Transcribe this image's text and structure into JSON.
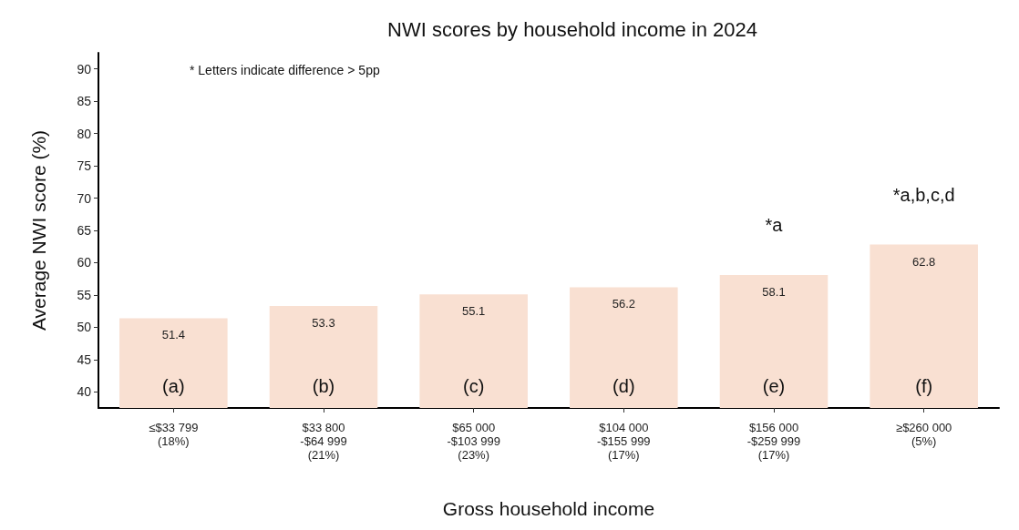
{
  "chart_data": {
    "type": "bar",
    "title": "NWI scores by household income in 2024",
    "xlabel": "Gross household income",
    "ylabel": "Average NWI score (%)",
    "categories": [
      "≤$33 799\n(18%)",
      "$33 800\n-$64 999\n(21%)",
      "$65 000\n-$103 999\n(23%)",
      "$104 000\n-$155 999\n(17%)",
      "$156 000\n-$259 999\n(17%)",
      "≥$260 000\n(5%)"
    ],
    "values": [
      51.4,
      53.3,
      55.1,
      56.2,
      58.1,
      62.8
    ],
    "color": "#f9e0d2",
    "ylim": [
      37.5,
      92.5
    ],
    "yticks": [
      40,
      45,
      50,
      55,
      60,
      65,
      70,
      75,
      80,
      85,
      90
    ],
    "grid": false,
    "data_labels": true,
    "annotations": [
      "* Letters indicate difference > 5pp",
      "(a)",
      "(b)",
      "(c)",
      "(d)",
      "(e)",
      "(f)",
      "*a",
      "*a,b,c,d"
    ]
  }
}
